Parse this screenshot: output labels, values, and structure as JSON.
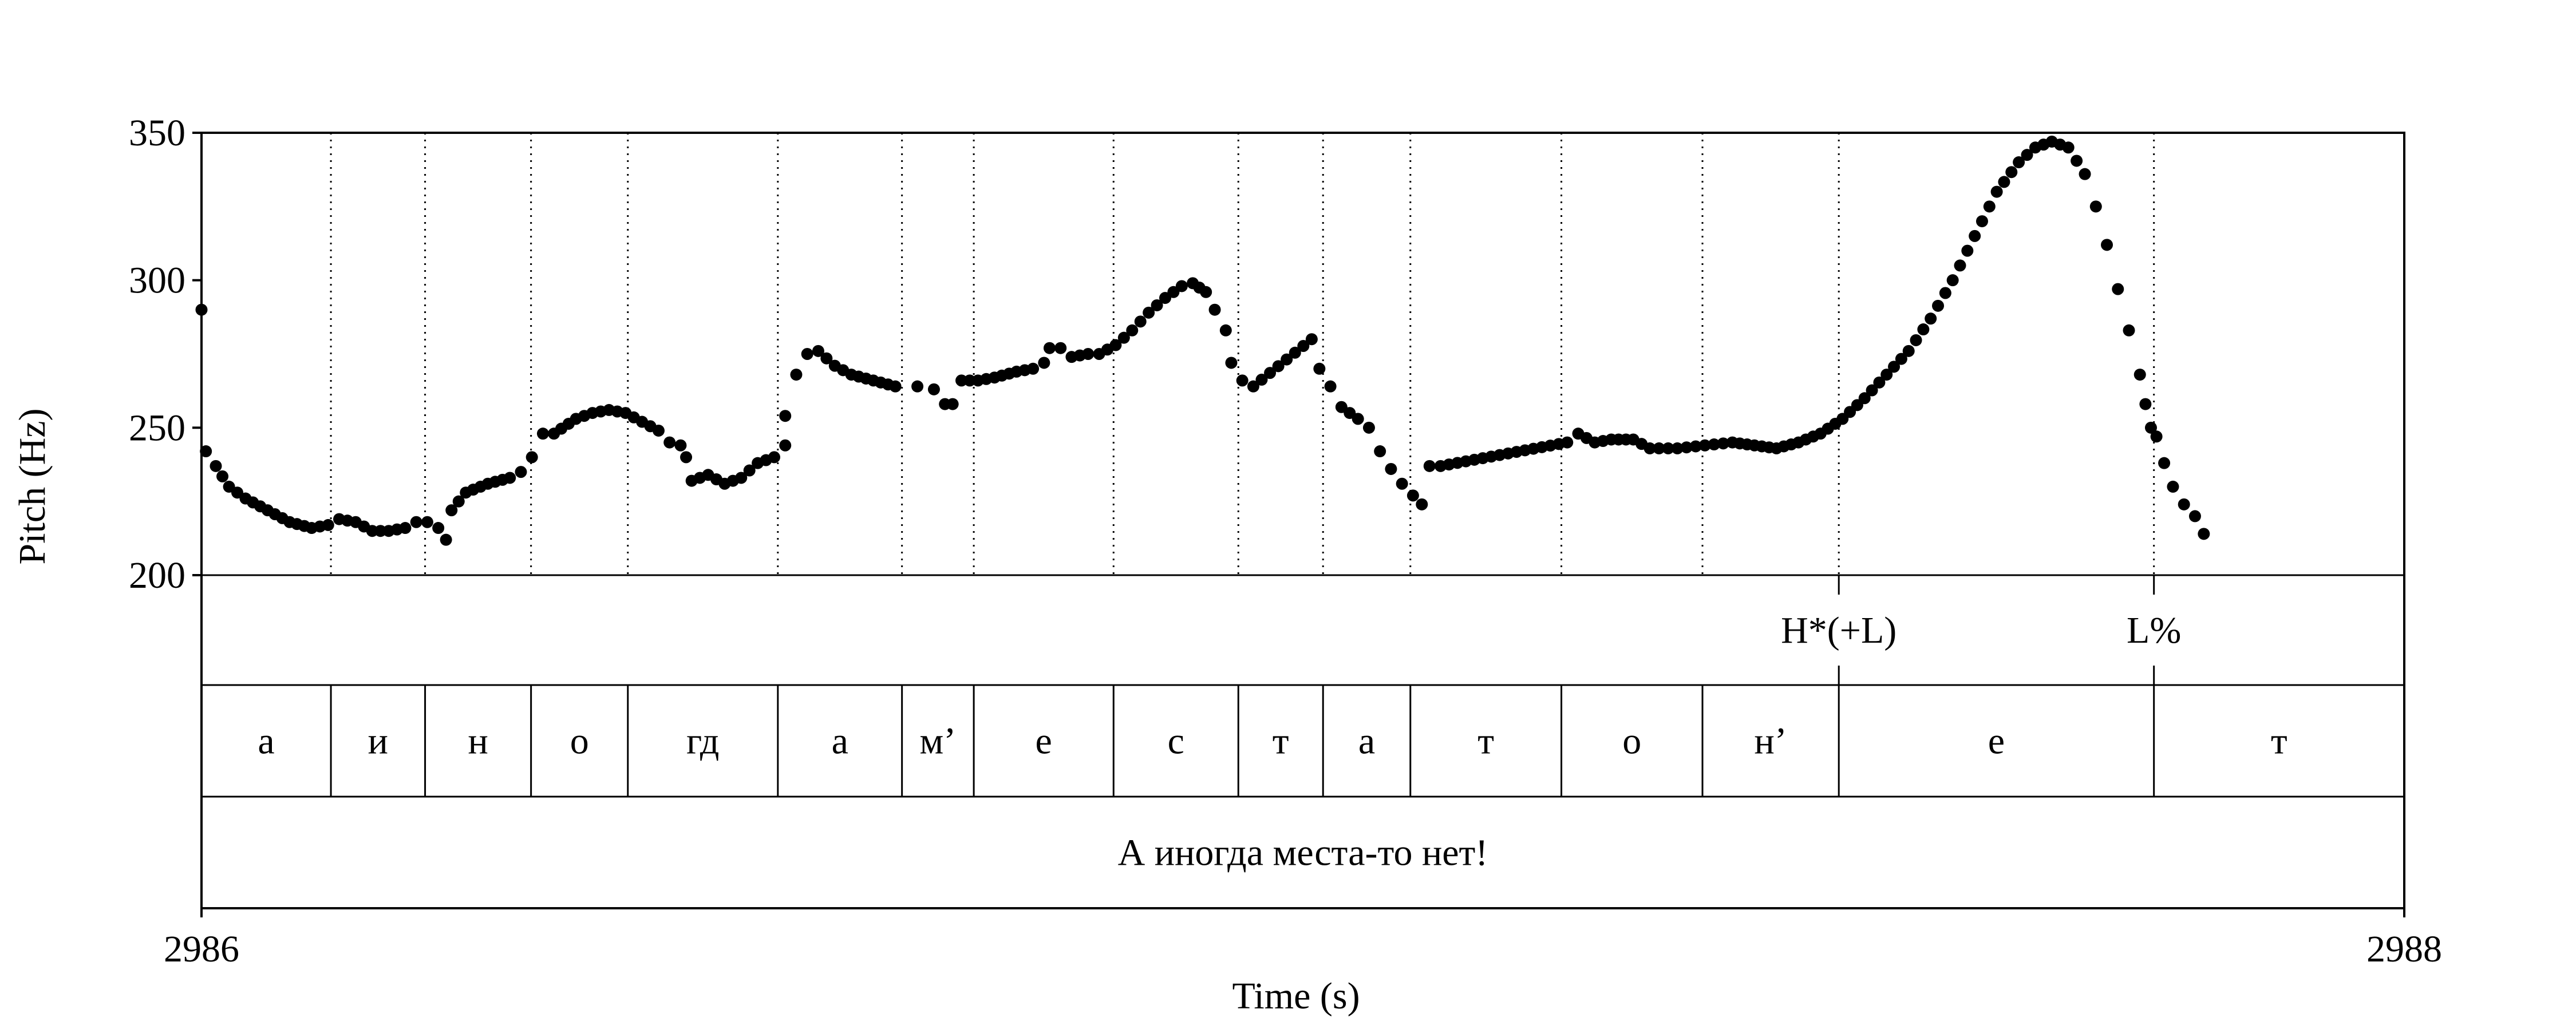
{
  "chart_data": {
    "type": "scatter",
    "xlabel": "Time (s)",
    "ylabel": "Pitch (Hz)",
    "xlim": [
      2986,
      2988
    ],
    "ylim": [
      200,
      350
    ],
    "x_ticks": [
      "2986",
      "2988"
    ],
    "y_ticks": [
      "350",
      "300",
      "250",
      "200"
    ],
    "grid": false,
    "point_color": "#000000",
    "boundaries": [
      2986.1175,
      2986.203,
      2986.2992,
      2986.3871,
      2986.5233,
      2986.636,
      2986.7012,
      2986.8281,
      2986.9414,
      2987.0183,
      2987.0976,
      2987.2347,
      2987.3628,
      2987.4866,
      2987.7727
    ],
    "tones_tier": [
      {
        "label": "H*(+L)",
        "time": 2987.4866
      },
      {
        "label": "L%",
        "time": 2987.7727
      }
    ],
    "segments_tier": [
      {
        "label": "а",
        "start": 2986.0,
        "end": 2986.1175
      },
      {
        "label": "и",
        "start": 2986.1175,
        "end": 2986.203
      },
      {
        "label": "н",
        "start": 2986.203,
        "end": 2986.2992
      },
      {
        "label": "о",
        "start": 2986.2992,
        "end": 2986.3871
      },
      {
        "label": "гд",
        "start": 2986.3871,
        "end": 2986.5233
      },
      {
        "label": "а",
        "start": 2986.5233,
        "end": 2986.636
      },
      {
        "label": "м’",
        "start": 2986.636,
        "end": 2986.7012
      },
      {
        "label": "е",
        "start": 2986.7012,
        "end": 2986.8281
      },
      {
        "label": "с",
        "start": 2986.8281,
        "end": 2986.9414
      },
      {
        "label": "т",
        "start": 2986.9414,
        "end": 2987.0183
      },
      {
        "label": "а",
        "start": 2987.0183,
        "end": 2987.0976
      },
      {
        "label": "т",
        "start": 2987.0976,
        "end": 2987.2347
      },
      {
        "label": "о",
        "start": 2987.2347,
        "end": 2987.3628
      },
      {
        "label": "н’",
        "start": 2987.3628,
        "end": 2987.4866
      },
      {
        "label": "е",
        "start": 2987.4866,
        "end": 2987.7727
      },
      {
        "label": "т",
        "start": 2987.7727,
        "end": 2988.0
      }
    ],
    "utterance_tier": [
      {
        "label": "А иногда места-то нет!",
        "start": 2986.0,
        "end": 2988.0
      }
    ],
    "anchors": [
      [
        2986.0,
        290
      ],
      [
        2986.004,
        242
      ],
      [
        2986.013,
        237
      ],
      [
        2986.025,
        230
      ],
      [
        2986.04,
        226
      ],
      [
        2986.06,
        222
      ],
      [
        2986.08,
        218
      ],
      [
        2986.1,
        216
      ],
      [
        2986.115,
        217
      ],
      [
        2986.125,
        219
      ],
      [
        2986.14,
        218
      ],
      [
        2986.155,
        215
      ],
      [
        2986.17,
        215
      ],
      [
        2986.185,
        216
      ],
      [
        2986.195,
        218
      ],
      [
        2986.205,
        218
      ],
      [
        2986.215,
        216
      ],
      [
        2986.222,
        212
      ],
      [
        2986.227,
        222
      ],
      [
        2986.24,
        228
      ],
      [
        2986.26,
        231
      ],
      [
        2986.28,
        233
      ],
      [
        2986.29,
        235
      ],
      [
        2986.3,
        240
      ],
      [
        2986.31,
        248
      ],
      [
        2986.32,
        248
      ],
      [
        2986.34,
        253
      ],
      [
        2986.355,
        255
      ],
      [
        2986.37,
        256
      ],
      [
        2986.385,
        255
      ],
      [
        2986.4,
        252
      ],
      [
        2986.415,
        249
      ],
      [
        2986.425,
        245
      ],
      [
        2986.435,
        244
      ],
      [
        2986.44,
        240
      ],
      [
        2986.445,
        232
      ],
      [
        2986.46,
        234
      ],
      [
        2986.475,
        231
      ],
      [
        2986.49,
        233
      ],
      [
        2986.505,
        238
      ],
      [
        2986.52,
        240
      ],
      [
        2986.53,
        244
      ],
      [
        2986.53,
        254
      ],
      [
        2986.54,
        268
      ],
      [
        2986.55,
        275
      ],
      [
        2986.56,
        276
      ],
      [
        2986.575,
        271
      ],
      [
        2986.59,
        268
      ],
      [
        2986.61,
        266
      ],
      [
        2986.63,
        264
      ],
      [
        2986.65,
        264
      ],
      [
        2986.665,
        263
      ],
      [
        2986.675,
        258
      ],
      [
        2986.682,
        258
      ],
      [
        2986.69,
        266
      ],
      [
        2986.705,
        266
      ],
      [
        2986.72,
        267
      ],
      [
        2986.74,
        269
      ],
      [
        2986.755,
        270
      ],
      [
        2986.765,
        272
      ],
      [
        2986.77,
        277
      ],
      [
        2986.78,
        277
      ],
      [
        2986.79,
        274
      ],
      [
        2986.805,
        275
      ],
      [
        2986.815,
        275
      ],
      [
        2986.83,
        278
      ],
      [
        2986.845,
        283
      ],
      [
        2986.86,
        289
      ],
      [
        2986.875,
        294
      ],
      [
        2986.89,
        298
      ],
      [
        2986.9,
        299
      ],
      [
        2986.912,
        296
      ],
      [
        2986.92,
        290
      ],
      [
        2986.93,
        283
      ],
      [
        2986.935,
        272
      ],
      [
        2986.945,
        266
      ],
      [
        2986.955,
        264
      ],
      [
        2987.008,
        280
      ],
      [
        2987.015,
        270
      ],
      [
        2987.025,
        264
      ],
      [
        2987.035,
        257
      ],
      [
        2987.05,
        253
      ],
      [
        2987.06,
        250
      ],
      [
        2987.07,
        242
      ],
      [
        2987.08,
        236
      ],
      [
        2987.09,
        231
      ],
      [
        2987.1,
        227
      ],
      [
        2987.108,
        224
      ],
      [
        2987.115,
        237
      ],
      [
        2987.125,
        237
      ],
      [
        2987.24,
        245
      ],
      [
        2987.25,
        248
      ],
      [
        2987.265,
        245
      ],
      [
        2987.28,
        246
      ],
      [
        2987.3,
        246
      ],
      [
        2987.315,
        243
      ],
      [
        2987.34,
        243
      ],
      [
        2987.365,
        244
      ],
      [
        2987.39,
        245
      ],
      [
        2987.41,
        244
      ],
      [
        2987.43,
        243
      ],
      [
        2987.45,
        245
      ],
      [
        2987.47,
        248
      ],
      [
        2987.49,
        253
      ],
      [
        2987.51,
        260
      ],
      [
        2987.53,
        268
      ],
      [
        2987.55,
        276
      ],
      [
        2987.57,
        287
      ],
      [
        2987.59,
        300
      ],
      [
        2987.61,
        315
      ],
      [
        2987.63,
        330
      ],
      [
        2987.65,
        340
      ],
      [
        2987.665,
        345
      ],
      [
        2987.68,
        347
      ],
      [
        2987.695,
        345
      ],
      [
        2987.71,
        336
      ],
      [
        2987.72,
        325
      ],
      [
        2987.73,
        312
      ],
      [
        2987.74,
        297
      ],
      [
        2987.75,
        283
      ],
      [
        2987.76,
        268
      ],
      [
        2987.765,
        258
      ],
      [
        2987.77,
        250
      ],
      [
        2987.775,
        247
      ],
      [
        2987.782,
        238
      ],
      [
        2987.79,
        230
      ],
      [
        2987.8,
        224
      ],
      [
        2987.81,
        220
      ],
      [
        2987.818,
        214
      ]
    ],
    "dense_runs": [
      [
        0,
        16
      ],
      [
        18,
        42
      ],
      [
        44,
        49
      ],
      [
        52,
        73
      ],
      [
        75,
        87
      ],
      [
        89,
        126
      ]
    ]
  }
}
